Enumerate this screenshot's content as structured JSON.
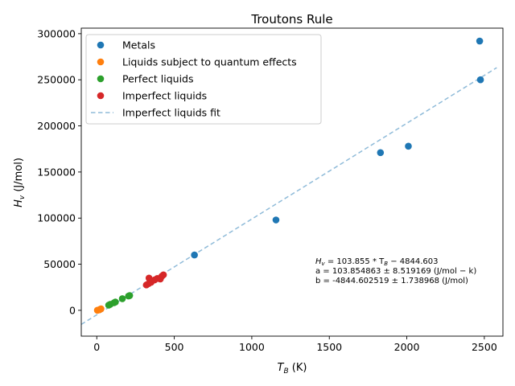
{
  "chart_data": {
    "type": "scatter",
    "title": "Troutons Rule",
    "xlabel_prefix": "T",
    "xlabel_sub": "B",
    "xlabel_suffix": " (K)",
    "ylabel_prefix": "H",
    "ylabel_sub": "v",
    "ylabel_suffix": " (J/mol)",
    "xlim": [
      -100,
      2620
    ],
    "ylim": [
      -28000,
      306000
    ],
    "xticks": [
      0,
      500,
      1000,
      1500,
      2000,
      2500
    ],
    "yticks": [
      0,
      50000,
      100000,
      150000,
      200000,
      250000,
      300000
    ],
    "legend_position": "upper-left",
    "series": [
      {
        "name": "Metals",
        "color": "#1f77b4",
        "points": [
          [
            630,
            60000
          ],
          [
            1156,
            98000
          ],
          [
            1830,
            171000
          ],
          [
            2010,
            178000
          ],
          [
            2475,
            250000
          ],
          [
            2470,
            292000
          ]
        ]
      },
      {
        "name": "Liquids subject to quantum effects",
        "color": "#ff7f0e",
        "points": [
          [
            4,
            80
          ],
          [
            14,
            450
          ],
          [
            20,
            900
          ],
          [
            27,
            1600
          ]
        ]
      },
      {
        "name": "Perfect liquids",
        "color": "#2ca02c",
        "points": [
          [
            77,
            5600
          ],
          [
            87,
            6500
          ],
          [
            111,
            8200
          ],
          [
            120,
            9000
          ],
          [
            165,
            12600
          ],
          [
            212,
            16000
          ],
          [
            205,
            15500
          ]
        ]
      },
      {
        "name": "Imperfect liquids",
        "color": "#d62728",
        "points": [
          [
            320,
            27500
          ],
          [
            335,
            29000
          ],
          [
            337,
            35000
          ],
          [
            351,
            30500
          ],
          [
            373,
            33000
          ],
          [
            390,
            34500
          ],
          [
            410,
            34000
          ],
          [
            420,
            37000
          ],
          [
            430,
            38500
          ]
        ]
      }
    ],
    "fit": {
      "name": "Imperfect liquids fit",
      "color": "#1f77b4",
      "slope": 103.855,
      "intercept": -4844.603,
      "x_range": [
        -100,
        2580
      ]
    },
    "annotation": {
      "line1": "H_v = 103.855 * T_B − 4844.603",
      "line1_parts": [
        "H",
        "v",
        " = 103.855 * T",
        "B",
        " − 4844.603"
      ],
      "line2": "a = 103.854863 ± 8.519169 (J/mol − k)",
      "line3": "b = -4844.602519 ± 1.738968 (J/mol)"
    }
  }
}
